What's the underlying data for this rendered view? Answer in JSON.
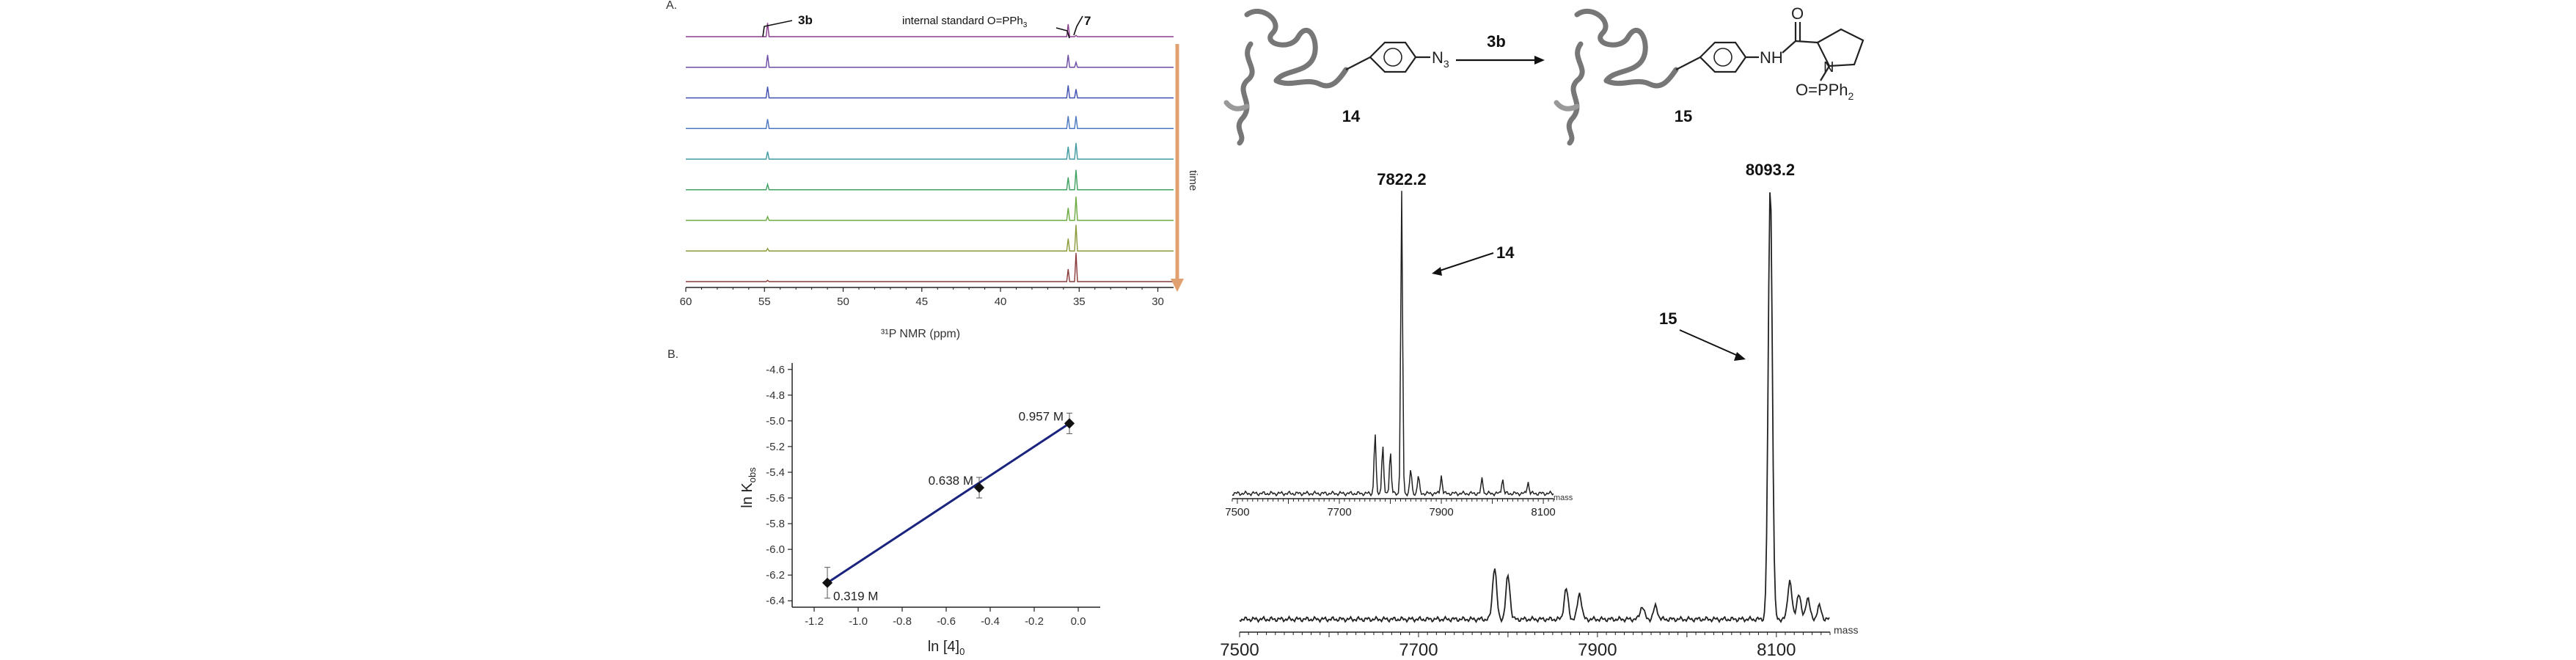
{
  "panel_a": {
    "label": "A.",
    "peak_label_3b": "3b",
    "standard_label": "internal standard O=PPh",
    "standard_subscript": "3",
    "peak_label_7": "7",
    "time_label": "time",
    "x_axis_label": "³¹P NMR (ppm)"
  },
  "panel_b": {
    "label": "B."
  },
  "scheme": {
    "compound_14": "14",
    "compound_15": "15",
    "reagent": "3b",
    "azide": "N",
    "azide_subscript": "3",
    "amide_nh": "NH",
    "amide_o": "O",
    "ring_n": "N",
    "phosphine": "O=PPh",
    "phosphine_subscript": "2"
  },
  "colors": {
    "nmr_traces": [
      "#8a3d8f",
      "#6b4aa3",
      "#3f4fb0",
      "#4a78c0",
      "#3f9aa0",
      "#3fa060",
      "#6aaa40",
      "#8a9a38",
      "#8a3a3a"
    ],
    "time_arrow": "#e0a070",
    "fit_line": "#1a237e",
    "spectrum": "#222222"
  },
  "chart_data": [
    {
      "type": "line",
      "id": "nmr-stack",
      "xlabel": "³¹P NMR (ppm)",
      "xlim": [
        60,
        29
      ],
      "xticks": [
        60,
        55,
        50,
        45,
        40,
        35,
        30
      ],
      "trace_count": 9,
      "peaks": [
        {
          "name": "3b",
          "ppm": 54.8,
          "heights": [
            0.55,
            0.5,
            0.45,
            0.38,
            0.3,
            0.22,
            0.15,
            0.1,
            0.05
          ]
        },
        {
          "name": "internal standard",
          "ppm": 35.7,
          "heights": [
            0.5,
            0.5,
            0.5,
            0.5,
            0.5,
            0.5,
            0.5,
            0.5,
            0.5
          ]
        },
        {
          "name": "7",
          "ppm": 35.2,
          "heights": [
            0.05,
            0.2,
            0.35,
            0.5,
            0.65,
            0.8,
            0.95,
            1.05,
            1.15
          ]
        }
      ]
    },
    {
      "type": "scatter",
      "id": "kinetics",
      "xlabel": "ln [4]",
      "xlabel_subscript": "0",
      "ylabel": "ln K",
      "ylabel_subscript": "obs",
      "xlim": [
        -1.3,
        0.1
      ],
      "ylim": [
        -6.45,
        -4.55
      ],
      "xticks": [
        -1.2,
        -1.0,
        -0.8,
        -0.6,
        -0.4,
        -0.2,
        0.0
      ],
      "yticks": [
        -4.6,
        -4.8,
        -5.0,
        -5.2,
        -5.4,
        -5.6,
        -5.8,
        -6.0,
        -6.2,
        -6.4
      ],
      "points": [
        {
          "x": -1.14,
          "y": -6.26,
          "err": 0.12,
          "label": "0.319 M"
        },
        {
          "x": -0.45,
          "y": -5.52,
          "err": 0.08,
          "label": "0.638 M"
        },
        {
          "x": -0.04,
          "y": -5.02,
          "err": 0.08,
          "label": "0.957 M"
        }
      ],
      "fit": {
        "x": [
          -1.14,
          -0.04
        ],
        "y": [
          -6.26,
          -5.02
        ]
      }
    },
    {
      "type": "line",
      "id": "ms-main",
      "xlabel": "mass",
      "xlim": [
        7500,
        8160
      ],
      "xticks": [
        7500,
        7700,
        7900,
        8100
      ],
      "peaks": [
        {
          "x": 8093.2,
          "h": 1.0,
          "label": "8093.2",
          "compound": "15"
        },
        {
          "x": 7785,
          "h": 0.12
        },
        {
          "x": 7800,
          "h": 0.1
        },
        {
          "x": 7865,
          "h": 0.07
        },
        {
          "x": 7880,
          "h": 0.06
        },
        {
          "x": 7950,
          "h": 0.03
        },
        {
          "x": 7965,
          "h": 0.03
        },
        {
          "x": 8115,
          "h": 0.09
        },
        {
          "x": 8125,
          "h": 0.06
        },
        {
          "x": 8135,
          "h": 0.05
        },
        {
          "x": 8148,
          "h": 0.03
        }
      ]
    },
    {
      "type": "line",
      "id": "ms-inset",
      "xlabel": "mass",
      "xlim": [
        7490,
        8120
      ],
      "xticks": [
        7500,
        7700,
        7900,
        8100
      ],
      "peaks": [
        {
          "x": 7822.2,
          "h": 1.0,
          "label": "7822.2",
          "compound": "14"
        },
        {
          "x": 7770,
          "h": 0.2
        },
        {
          "x": 7785,
          "h": 0.16
        },
        {
          "x": 7800,
          "h": 0.14
        },
        {
          "x": 7840,
          "h": 0.08
        },
        {
          "x": 7855,
          "h": 0.06
        },
        {
          "x": 7900,
          "h": 0.06
        },
        {
          "x": 7980,
          "h": 0.05
        },
        {
          "x": 8020,
          "h": 0.05
        },
        {
          "x": 8070,
          "h": 0.04
        }
      ]
    }
  ]
}
